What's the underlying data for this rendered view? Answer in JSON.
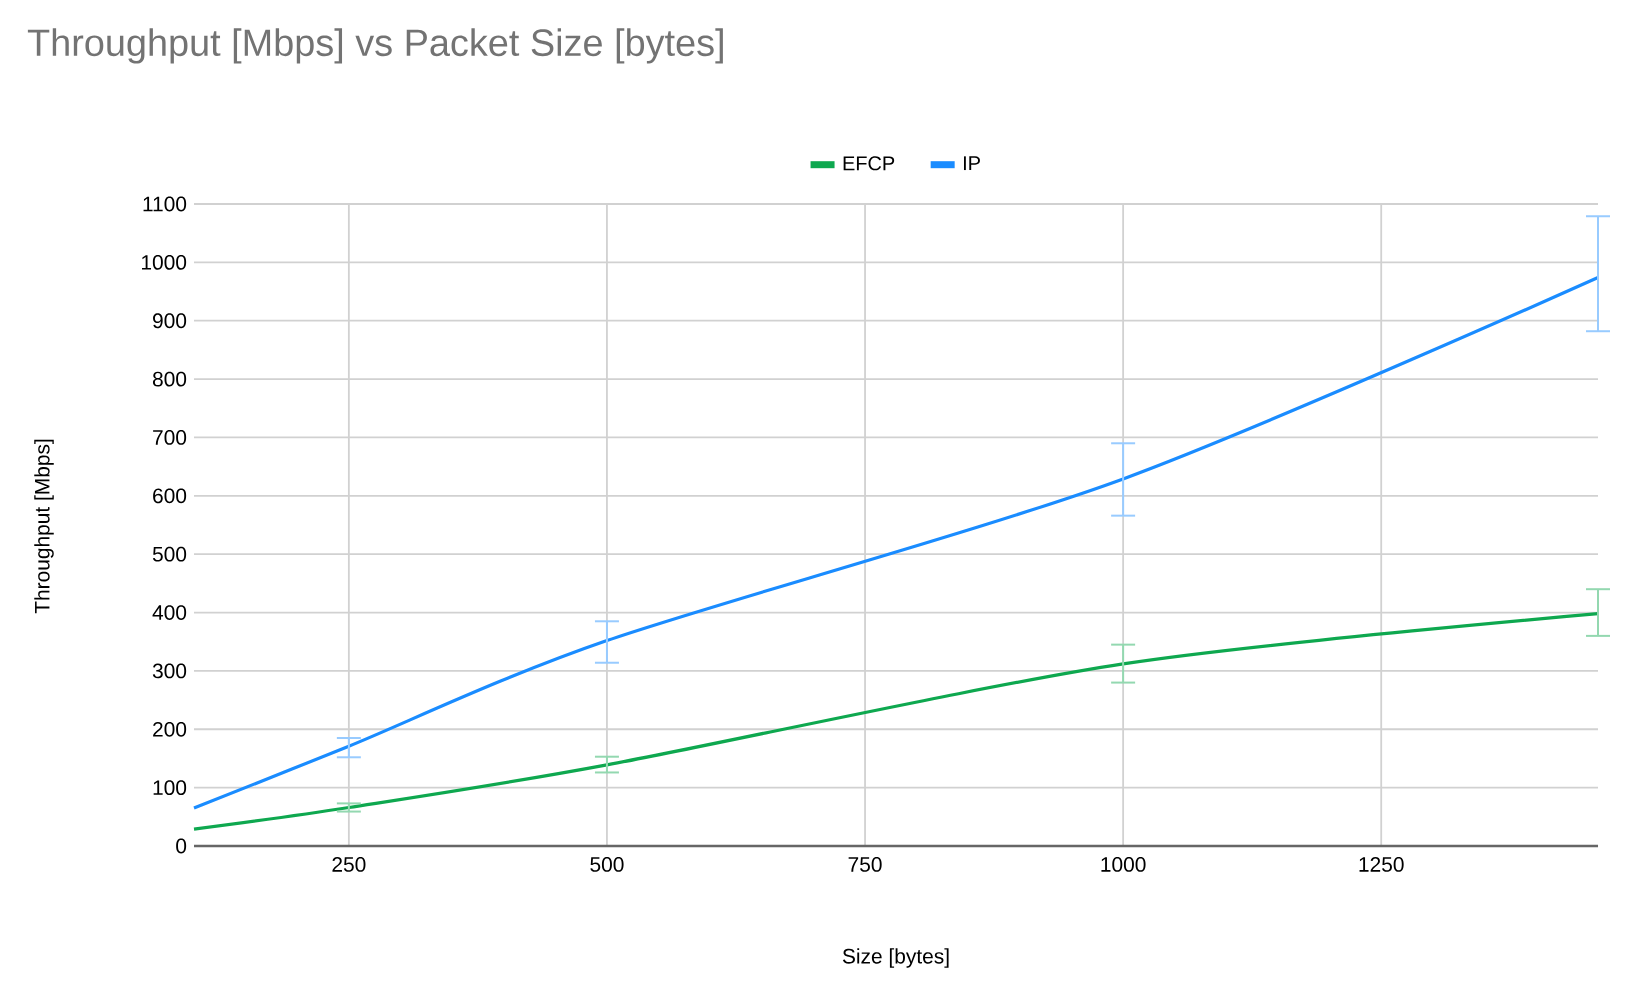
{
  "chart_data": {
    "type": "line",
    "title": "Throughput [Mbps] vs Packet Size [bytes]",
    "xlabel": "Size [bytes]",
    "ylabel": "Throughput [Mbps]",
    "x": [
      100,
      250,
      500,
      1000,
      1460
    ],
    "series": [
      {
        "name": "EFCP",
        "color": "#0ea84f",
        "values": [
          29,
          66,
          139,
          312,
          398
        ],
        "errors": [
          null,
          [
            59,
            73
          ],
          [
            126,
            153
          ],
          [
            280,
            345
          ],
          [
            360,
            440
          ]
        ]
      },
      {
        "name": "IP",
        "color": "#1a8cff",
        "values": [
          65,
          171,
          352,
          629,
          974
        ],
        "errors": [
          null,
          [
            152,
            185
          ],
          [
            314,
            385
          ],
          [
            566,
            690
          ],
          [
            882,
            1079
          ]
        ]
      }
    ],
    "xlim": [
      100,
      1460
    ],
    "xticks": [
      250,
      500,
      750,
      1000,
      1250
    ],
    "ylim": [
      0,
      1100
    ],
    "yticks": [
      0,
      100,
      200,
      300,
      400,
      500,
      600,
      700,
      800,
      900,
      1000,
      1100
    ],
    "grid": true,
    "legend": "top",
    "marker": "none",
    "line_style": "solid"
  }
}
